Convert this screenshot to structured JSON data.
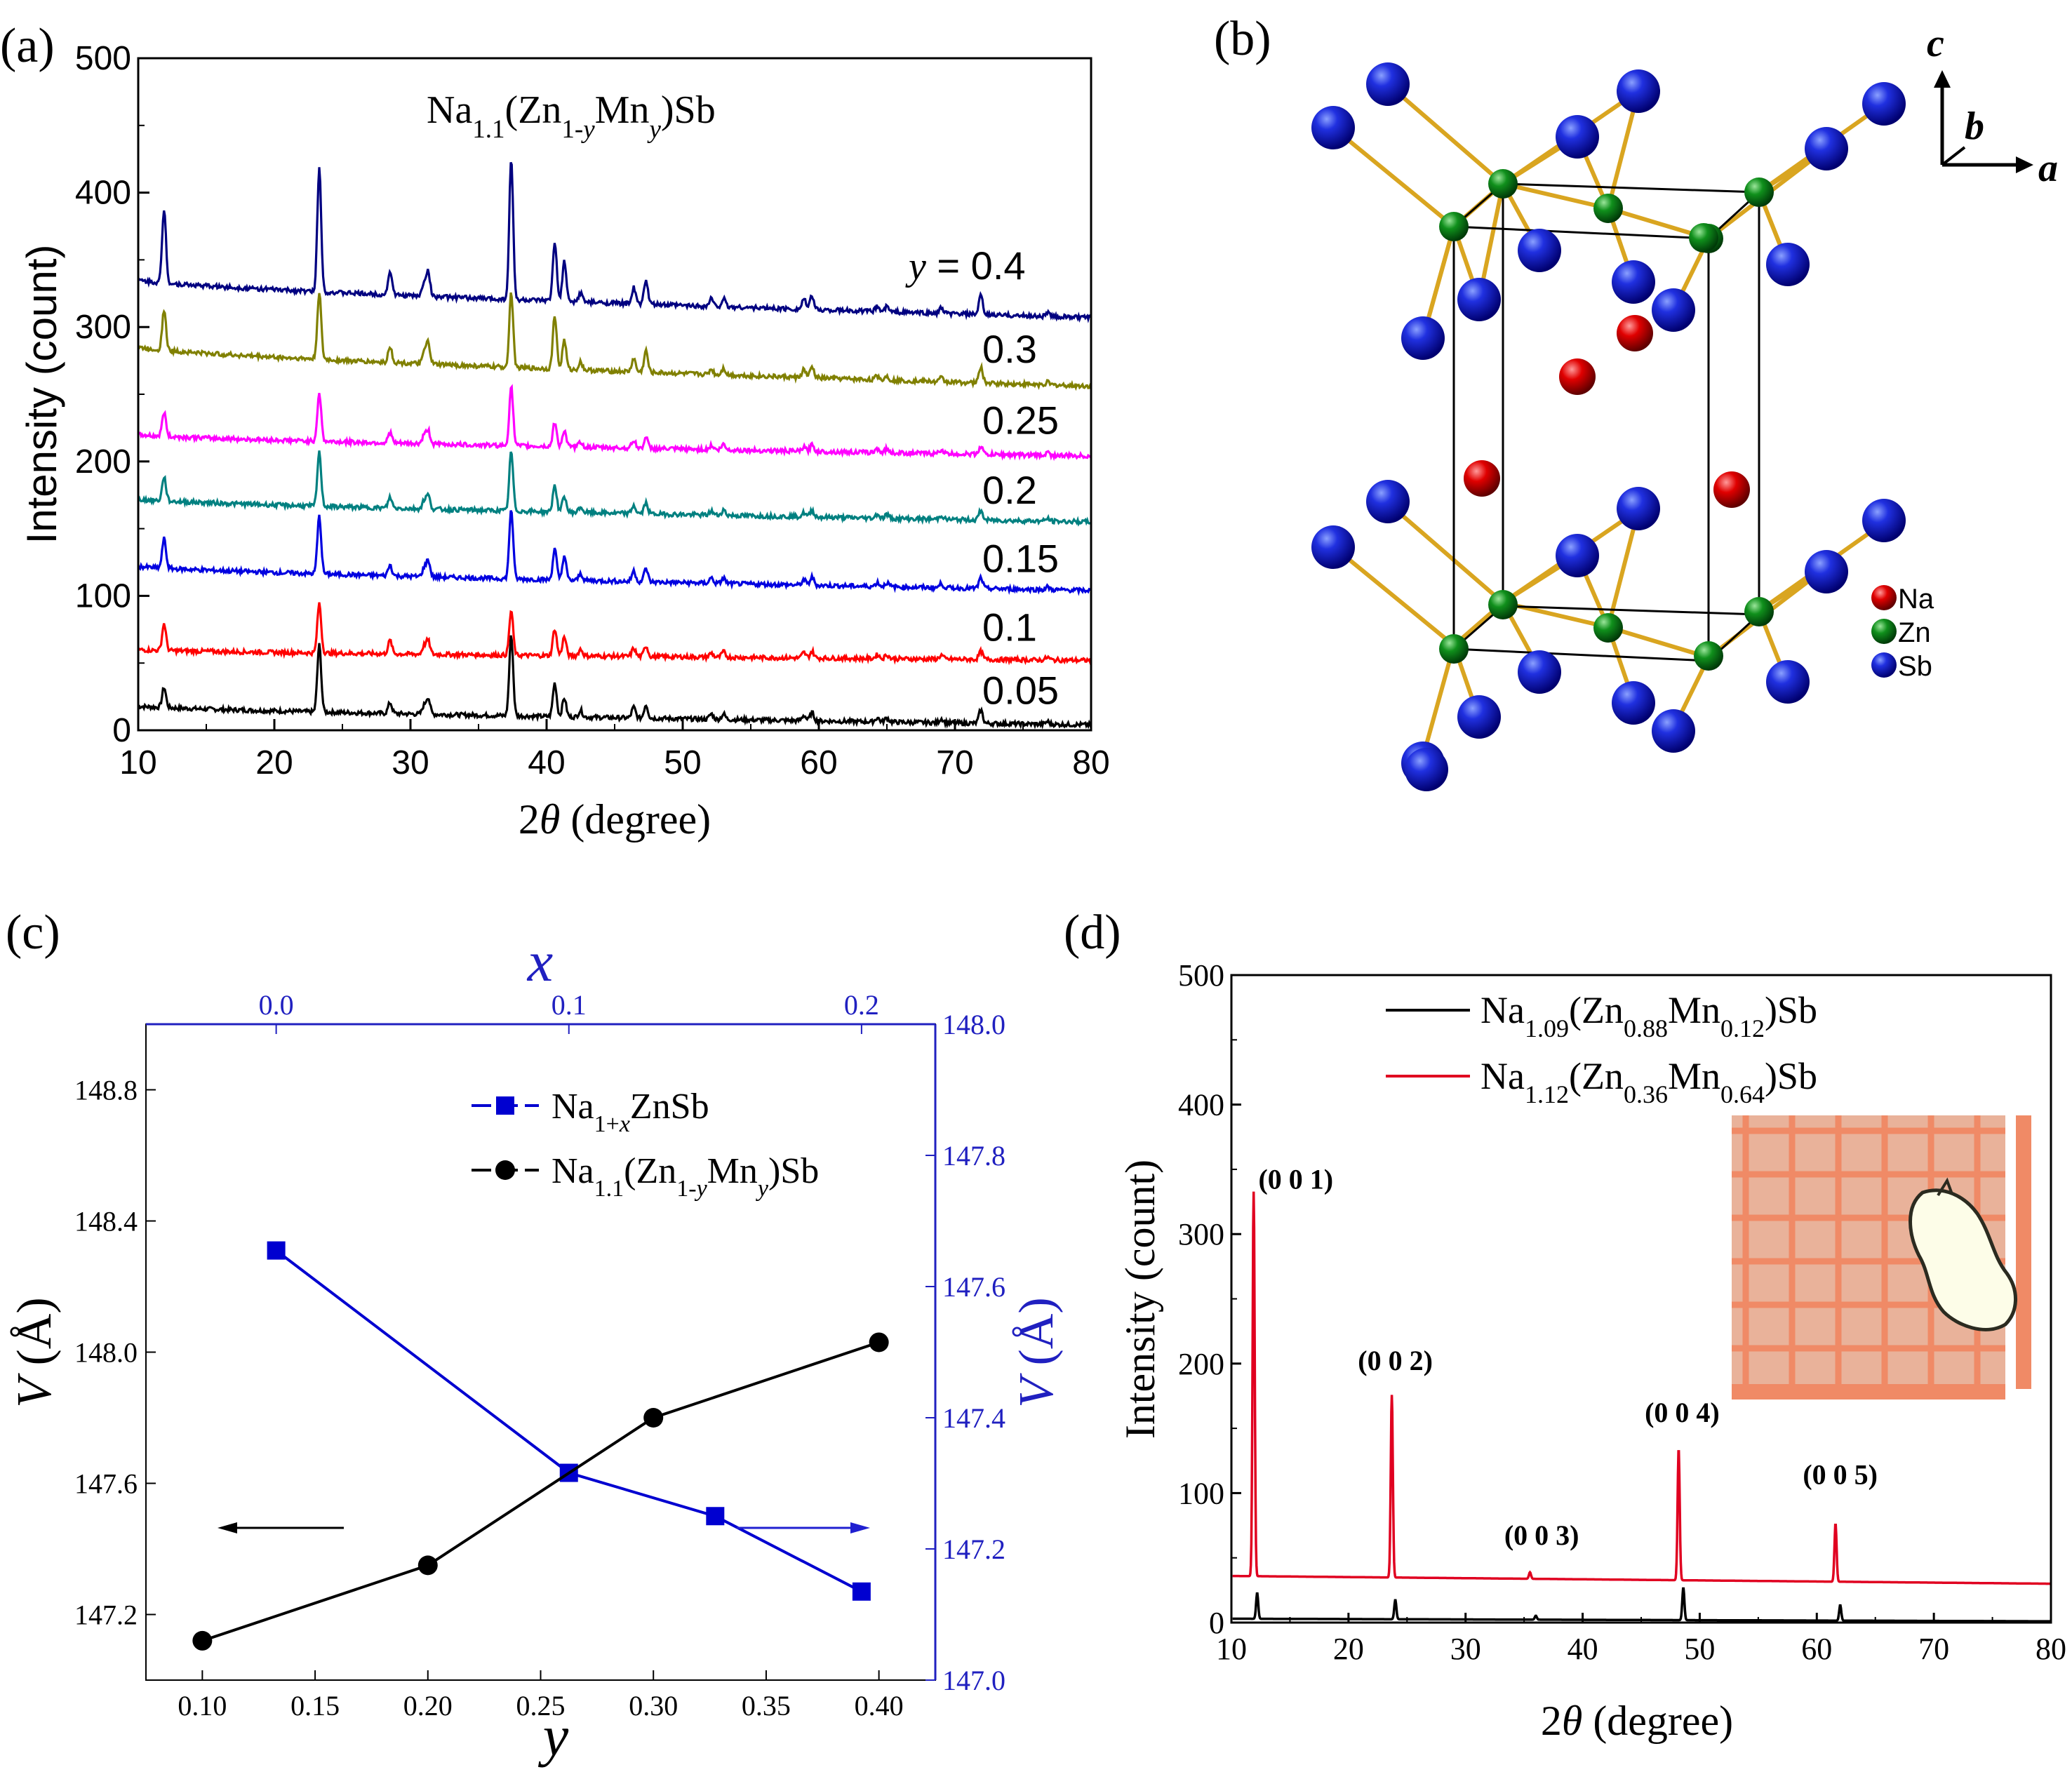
{
  "panels": {
    "a": {
      "label": "(a)"
    },
    "b": {
      "label": "(b)"
    },
    "c": {
      "label": "(c)"
    },
    "d": {
      "label": "(d)"
    }
  },
  "chart_data": [
    {
      "id": "a",
      "type": "line",
      "title_parts": [
        "Na",
        "1.1",
        "(Zn",
        "1-",
        "y",
        "Mn",
        "y",
        ")Sb"
      ],
      "xlabel_parts": [
        "2",
        "θ",
        " (degree)"
      ],
      "ylabel": "Intensity (count)",
      "xlim": [
        10,
        80
      ],
      "ylim": [
        0,
        500
      ],
      "xticks": [
        10,
        20,
        30,
        40,
        50,
        60,
        70,
        80
      ],
      "yticks": [
        0,
        100,
        200,
        300,
        400,
        500
      ],
      "peak_positions": [
        11.9,
        23.3,
        28.5,
        31.0,
        31.3,
        37.4,
        40.6,
        41.3,
        42.5,
        46.4,
        47.3,
        52.1,
        53.0,
        58.9,
        59.5,
        64.3,
        65.0,
        69.0,
        71.9,
        76.8
      ],
      "series": [
        {
          "name": "0.05",
          "color": "#000000",
          "baseline": [
            18,
            4
          ],
          "peaks": [
            15,
            50,
            8,
            6,
            12,
            60,
            25,
            14,
            5,
            8,
            10,
            4,
            4,
            4,
            6,
            3,
            3,
            3,
            10,
            2
          ]
        },
        {
          "name": "0.1",
          "color": "#ff0000",
          "baseline": [
            60,
            52
          ],
          "peaks": [
            20,
            37,
            10,
            6,
            10,
            33,
            20,
            14,
            5,
            6,
            8,
            3,
            4,
            4,
            5,
            3,
            3,
            3,
            6,
            2
          ]
        },
        {
          "name": "0.15",
          "color": "#0000e0",
          "baseline": [
            122,
            104
          ],
          "peaks": [
            22,
            43,
            8,
            6,
            12,
            52,
            23,
            18,
            5,
            8,
            10,
            4,
            4,
            4,
            6,
            3,
            3,
            3,
            8,
            2
          ]
        },
        {
          "name": "0.2",
          "color": "#008080",
          "baseline": [
            172,
            155
          ],
          "peaks": [
            18,
            40,
            8,
            6,
            10,
            44,
            20,
            12,
            4,
            6,
            8,
            3,
            4,
            3,
            5,
            3,
            3,
            3,
            7,
            2
          ]
        },
        {
          "name": "0.25",
          "color": "#ff00ff",
          "baseline": [
            220,
            204
          ],
          "peaks": [
            18,
            36,
            8,
            6,
            10,
            44,
            18,
            12,
            4,
            6,
            8,
            3,
            4,
            3,
            5,
            3,
            3,
            3,
            6,
            2
          ]
        },
        {
          "name": "0.3",
          "color": "#808000",
          "baseline": [
            285,
            256
          ],
          "peaks": [
            30,
            50,
            12,
            8,
            16,
            56,
            40,
            22,
            6,
            10,
            16,
            4,
            5,
            6,
            8,
            3,
            3,
            3,
            12,
            2
          ]
        },
        {
          "name": "0.4",
          "color": "#000080",
          "baseline": [
            335,
            307
          ],
          "peaks": [
            55,
            92,
            18,
            10,
            18,
            105,
            44,
            30,
            7,
            12,
            18,
            6,
            6,
            8,
            10,
            4,
            4,
            4,
            14,
            3
          ]
        }
      ],
      "curve_labels": [
        {
          "text": "y = 0.4",
          "y": 345
        },
        {
          "text": "0.3",
          "y": 283
        },
        {
          "text": "0.25",
          "y": 230
        },
        {
          "text": "0.2",
          "y": 178
        },
        {
          "text": "0.15",
          "y": 127
        },
        {
          "text": "0.1",
          "y": 76
        },
        {
          "text": "0.05",
          "y": 29
        }
      ]
    },
    {
      "id": "c",
      "type": "line",
      "xlabel": "y",
      "x2label": "x",
      "ylabel": "V (Å)",
      "y2label": "V (Å)",
      "xlim": [
        0.075,
        0.425
      ],
      "ylim": [
        147.0,
        149.0
      ],
      "x2lim": [
        -0.0445,
        0.2252
      ],
      "y2lim": [
        147.0,
        148.0
      ],
      "xticks": [
        0.1,
        0.15,
        0.2,
        0.25,
        0.3,
        0.35,
        0.4
      ],
      "yticks": [
        147.2,
        147.6,
        148.0,
        148.4,
        148.8
      ],
      "x2ticks": [
        0.0,
        0.1,
        0.2
      ],
      "y2ticks": [
        147.0,
        147.2,
        147.4,
        147.6,
        147.8,
        148.0
      ],
      "series": [
        {
          "name_parts": [
            "Na",
            "1+",
            "x",
            "ZnSb"
          ],
          "axis": "secondary",
          "marker": "square",
          "color": "#0000d0",
          "x": [
            0.0,
            0.1,
            0.15,
            0.2
          ],
          "y": [
            147.655,
            147.316,
            147.25,
            147.135
          ]
        },
        {
          "name_parts": [
            "Na",
            "1.1",
            "(Zn",
            "1-",
            "y",
            "Mn",
            "y",
            ")Sb"
          ],
          "axis": "primary",
          "marker": "circle",
          "color": "#000000",
          "x": [
            0.1,
            0.2,
            0.3,
            0.4
          ],
          "y": [
            147.12,
            147.35,
            147.8,
            148.03
          ]
        }
      ],
      "x2tick_labels": [
        "0.0",
        "0.1",
        "0.2"
      ],
      "xtick_labels": [
        "0.10",
        "0.15",
        "0.20",
        "0.25",
        "0.30",
        "0.35",
        "0.40"
      ],
      "legend_placement": "top-right"
    },
    {
      "id": "d",
      "type": "line",
      "xlabel_parts": [
        "2",
        "θ",
        " (degree)"
      ],
      "ylabel": "Intensity (count)",
      "xlim": [
        10,
        80
      ],
      "ylim": [
        0,
        500
      ],
      "xticks": [
        10,
        20,
        30,
        40,
        50,
        60,
        70,
        80
      ],
      "yticks": [
        0,
        100,
        200,
        300,
        400,
        500
      ],
      "series": [
        {
          "name_parts": [
            "Na",
            "1.09",
            "(Zn",
            "0.88",
            "Mn",
            "0.12",
            ")Sb"
          ],
          "color": "#000000",
          "baseline": [
            3,
            1
          ],
          "peaks": [
            [
              12.2,
              20
            ],
            [
              24.0,
              15
            ],
            [
              36.0,
              3
            ],
            [
              48.6,
              25
            ],
            [
              62.0,
              12
            ]
          ]
        },
        {
          "name_parts": [
            "Na",
            "1.12",
            "(Zn",
            "0.36",
            "Mn",
            "0.64",
            ")Sb"
          ],
          "color": "#e00020",
          "baseline": [
            36,
            30
          ],
          "peaks": [
            [
              11.9,
              297
            ],
            [
              23.7,
              141
            ],
            [
              35.5,
              5
            ],
            [
              48.2,
              102
            ],
            [
              61.6,
              45
            ]
          ]
        }
      ],
      "annotations": [
        {
          "text": "(0 0 1)",
          "x": 15.5,
          "y": 335
        },
        {
          "text": "(0 0 2)",
          "x": 24.0,
          "y": 195
        },
        {
          "text": "(0 0 3)",
          "x": 36.5,
          "y": 60
        },
        {
          "text": "(0 0 4)",
          "x": 48.5,
          "y": 155
        },
        {
          "text": "(0 0 5)",
          "x": 62.0,
          "y": 107
        }
      ],
      "legend_placement": "top-center"
    }
  ],
  "structure": {
    "axes": {
      "a": "a",
      "b": "b",
      "c": "c"
    },
    "legend": [
      {
        "name": "Na",
        "color": "#e00000"
      },
      {
        "name": "Zn",
        "color": "#0a8a1e"
      },
      {
        "name": "Sb",
        "color": "#1010d0"
      }
    ]
  }
}
